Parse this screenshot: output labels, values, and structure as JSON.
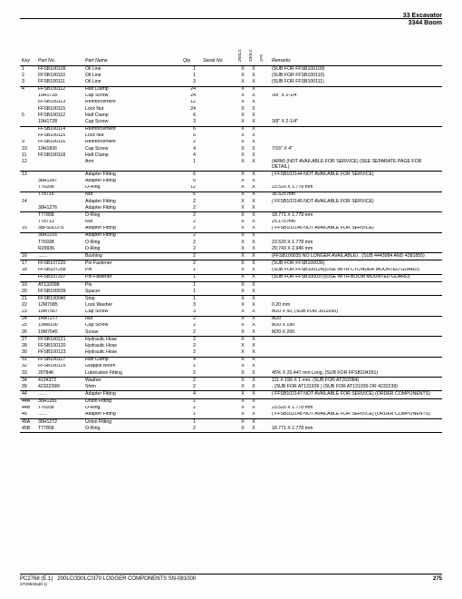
{
  "header": {
    "line1": "33  Excavator",
    "line2": "3344  Boom"
  },
  "columns": [
    "Key",
    "Part No.",
    "Part Name",
    "Qty.",
    "Serial No.",
    "200LC",
    "330LC",
    "370",
    "Remarks"
  ],
  "groups": [
    {
      "rows": [
        {
          "key": "1",
          "partno": "FFSB100109",
          "name": "Oil Line",
          "qty": "1",
          "v1": "X",
          "v2": "X",
          "remarks": "(SUB FOR FFSB100109)"
        },
        {
          "key": "2",
          "partno": "FFSB100110",
          "name": "Oil Line",
          "qty": "1",
          "v1": "X",
          "v2": "X",
          "remarks": "(SUB FOR FFSB100110)"
        },
        {
          "key": "3",
          "partno": "FFSB100111",
          "name": "Oil Line",
          "qty": "3",
          "v1": "X",
          "v2": "X",
          "remarks": "(SUB FOR FFSB100111)"
        }
      ]
    },
    {
      "rows": [
        {
          "key": "4",
          "partno": "FFSB100112",
          "name": "Half Clamp",
          "qty": "24",
          "v1": "X",
          "v2": "X"
        },
        {
          "key": "",
          "partno": "19H1728",
          "name": "Cap Screw",
          "qty": "24",
          "v1": "X",
          "v2": "X",
          "remarks": "3/8\" X 2-1/4\""
        },
        {
          "key": "",
          "partno": "FFSB100113",
          "name": "Reinforcement",
          "qty": "12",
          "v1": "X",
          "v2": "X"
        },
        {
          "key": "",
          "partno": "FFSB100115",
          "name": "Lock Nut",
          "qty": "24",
          "v1": "X",
          "v2": "X"
        },
        {
          "key": "5",
          "partno": "FFSB100112",
          "name": "Half Clamp",
          "qty": "6",
          "v1": "X",
          "v2": "X"
        },
        {
          "key": "",
          "partno": "19H1728",
          "name": "Cap Screw",
          "qty": "3",
          "v1": "X",
          "v2": "X",
          "remarks": "3/8\" X 2-1/4\""
        }
      ]
    },
    {
      "rows": [
        {
          "key": "",
          "partno": "FFSB100114",
          "name": "Reinforcement",
          "qty": "6",
          "v1": "X",
          "v2": "X"
        },
        {
          "key": "",
          "partno": "FFSB100115",
          "name": "Lock Nut",
          "qty": "6",
          "v1": "X",
          "v2": "X"
        },
        {
          "key": "9",
          "partno": "FFSB100116",
          "name": "Reinforcement",
          "qty": "2",
          "v1": "X",
          "v2": "X"
        },
        {
          "key": "10",
          "partno": "19H1826",
          "name": "Cap Screw",
          "qty": "4",
          "v1": "X",
          "v2": "X",
          "remarks": "7/16\" X 4\""
        },
        {
          "key": "11",
          "partno": "FFSB100118",
          "name": "Half Clamp",
          "qty": "4",
          "v1": "X",
          "v2": "X"
        },
        {
          "key": "12",
          "partno": "",
          "name": "Arm",
          "qty": "1",
          "v1": "X",
          "v2": "X",
          "remarks": "(ARM) (NOT AVAILABLE FOR SERVICE) (SEE SEPARATE PAGE FOR DETAIL)"
        }
      ]
    },
    {
      "rows": [
        {
          "key": "13",
          "partno": "",
          "name": "Adapter Fitting",
          "qty": "6",
          "v1": "X",
          "v2": "X",
          "remarks": "( FFSB102144 NOT AVAILABLE FOR SERVICE)"
        },
        {
          "key": "",
          "partno": "38H1287",
          "name": "Adapter Fitting",
          "qty": "6",
          "v1": "X",
          "v2": "X"
        },
        {
          "key": "",
          "partno": "T76938",
          "name": "O-Ring",
          "qty": "12",
          "v1": "X",
          "v2": "X",
          "remarks": "23.520 X 1.778 mm"
        }
      ]
    },
    {
      "rows": [
        {
          "key": "",
          "partno": "T78715",
          "name": "Nut",
          "qty": "6",
          "v1": "X",
          "v2": "X",
          "remarks": "36.525 mm"
        },
        {
          "key": "14",
          "partno": "",
          "name": "Adapter Fitting",
          "qty": "2",
          "v1": "X",
          "v2": "X",
          "remarks": "( FFSB102145 NOT AVAILABLE FOR SERVICE)"
        },
        {
          "key": "",
          "partno": "38H1276",
          "name": "Adapter Fitting",
          "qty": "2",
          "v1": "X",
          "v2": "X"
        }
      ]
    },
    {
      "rows": [
        {
          "key": "",
          "partno": "T77858",
          "name": "O-Ring",
          "qty": "2",
          "v1": "X",
          "v2": "X",
          "remarks": "18.771 X 1.778 mm"
        },
        {
          "key": "",
          "partno": "T78713",
          "name": "Nut",
          "qty": "2",
          "v1": "X",
          "v2": "X",
          "remarks": "25.175 mm"
        },
        {
          "key": "15",
          "partno": "38FSDLO-S",
          "name": "Adapter Fitting",
          "qty": "2",
          "v1": "X",
          "v2": "X",
          "remarks": "( FFSB102146 NOT AVAILABLE FOR SERVICE)"
        }
      ]
    },
    {
      "rows": [
        {
          "key": "",
          "partno": "38H1216",
          "name": "Adapter Fitting",
          "qty": "2",
          "v1": "X",
          "v2": "X"
        },
        {
          "key": "",
          "partno": "T76938",
          "name": "O-Ring",
          "qty": "2",
          "v1": "X",
          "v2": "X",
          "remarks": "23.520 X 1.778 mm"
        },
        {
          "key": "",
          "partno": "R29936",
          "name": "O-Ring",
          "qty": "2",
          "v1": "X",
          "v2": "X",
          "remarks": "29.743 X 2.946 mm"
        }
      ]
    },
    {
      "rows": [
        {
          "key": "16",
          "partno": ".......",
          "name": "Bushing",
          "qty": "2",
          "v1": "X",
          "v2": "X",
          "remarks": "(FFSB100035 NO LONGER AVAILABLE) , (SUB 4443984 AND 4381855)"
        }
      ]
    },
    {
      "rows": [
        {
          "key": "17",
          "partno": "FFSB107220",
          "name": "Pin Fastener",
          "qty": "2",
          "v1": "X",
          "v2": "X",
          "remarks": "(SUB FOR FFSB100036)"
        },
        {
          "key": "18",
          "partno": "FFSB107258",
          "name": "Pin",
          "qty": "1",
          "v1": "X",
          "v2": "X",
          "remarks": "(SUB FOR FFSB100124)(USE WITH CYLINDER MOUNTED GUARD)"
        }
      ]
    },
    {
      "rows": [
        {
          "key": "",
          "partno": "FFSB107207",
          "name": "Pin Fastener",
          "qty": "1",
          "v1": "X",
          "v2": "X",
          "remarks": "(SUB FOR FFSB100037)(USE WITH BOOM MOUNTED GUARD)"
        }
      ]
    },
    {
      "rows": [
        {
          "key": "19",
          "partno": "AT132098",
          "name": "Pin",
          "qty": "1",
          "v1": "X",
          "v2": "X"
        },
        {
          "key": "20",
          "partno": "FFSB100039",
          "name": "Spacer",
          "qty": "1",
          "v1": "X",
          "v2": "X"
        }
      ]
    },
    {
      "rows": [
        {
          "key": "21",
          "partno": "FFSB100040",
          "name": "Stop",
          "qty": "1",
          "v1": "X",
          "v2": "X"
        },
        {
          "key": "22",
          "partno": "12M7085",
          "name": "Lock Washer",
          "qty": "3",
          "v1": "X",
          "v2": "X",
          "remarks": "0.20 mm"
        },
        {
          "key": "23",
          "partno": "19M7567",
          "name": "Cap Screw",
          "qty": "3",
          "v1": "X",
          "v2": "X",
          "remarks": "M20 X 50, (SUB FOR J912050)"
        }
      ]
    },
    {
      "rows": [
        {
          "key": "24",
          "partno": "14M7277",
          "name": "Nut",
          "qty": "2",
          "v1": "X",
          "v2": "X",
          "remarks": "M20"
        },
        {
          "key": "25",
          "partno": "19M8100",
          "name": "Cap Screw",
          "qty": "2",
          "v1": "X",
          "v2": "X",
          "remarks": "M20 X 180"
        },
        {
          "key": "26",
          "partno": "19M7645",
          "name": "Screw",
          "qty": "2",
          "v1": "X",
          "v2": "X",
          "remarks": "M20 X 200"
        }
      ]
    },
    {
      "rows": [
        {
          "key": "27",
          "partno": "FFSB100121",
          "name": "Hydraulic Hose",
          "qty": "2",
          "v1": "X",
          "v2": "X"
        },
        {
          "key": "28",
          "partno": "FFSB100120",
          "name": "Hydraulic Hose",
          "qty": "2",
          "v1": "X",
          "v2": "X"
        },
        {
          "key": "30",
          "partno": "FFSB100123",
          "name": "Hydraulic Hose",
          "qty": "2",
          "v1": "X",
          "v2": "X"
        }
      ]
    },
    {
      "rows": [
        {
          "key": "31",
          "partno": "FFSB100117",
          "name": "Half Clamp",
          "qty": "4",
          "v1": "X",
          "v2": "X"
        },
        {
          "key": "32",
          "partno": "FFSB100125",
          "name": "Grapple Boom",
          "qty": "1",
          "v1": "X",
          "v2": "X"
        },
        {
          "key": "33",
          "partno": "J0784K",
          "name": "Lubrication Fitting",
          "qty": "2",
          "v1": "X",
          "v2": "X",
          "remarks": "45% X 20.447 mm Long, (SUB FOR FFSB104351)"
        }
      ]
    },
    {
      "rows": [
        {
          "key": "34",
          "partno": "4134372",
          "name": "Washer",
          "qty": "2",
          "v1": "X",
          "v2": "X",
          "remarks": "111 X 190 X 1 mm, (SUB FOR AT202084)"
        },
        {
          "key": "39",
          "partno": "4232239R",
          "name": "Shim",
          "qty": "2",
          "v1": "X",
          "v2": "X",
          "remarks": ", (SUB FOR AT131939 ) (SUB FOR AT131939 OR 4232239)"
        }
      ]
    },
    {
      "rows": [
        {
          "key": "44",
          "partno": ".......",
          "name": "Adapter Fitting",
          "qty": "4",
          "v1": "X",
          "v2": "X",
          "remarks": "( FFSB102147 NOT AVAILABLE FOR SERVICE) (ORDER COMPONENTS)"
        }
      ]
    },
    {
      "rows": [
        {
          "key": "44A",
          "partno": "38H1281",
          "name": "Union Fitting",
          "qty": "1",
          "v1": "X",
          "v2": "X"
        },
        {
          "key": "44B",
          "partno": "T76938",
          "name": "O-Ring",
          "qty": "2",
          "v1": "X",
          "v2": "X",
          "remarks": "23.520 X 1.778 mm"
        },
        {
          "key": "45",
          "partno": ".......",
          "name": "Adapter Fitting",
          "qty": "1",
          "v1": "X",
          "v2": "X",
          "remarks": "( FFSB102148 NOT AVAILABLE FOR SERVICE) (ORDER COMPONENTS)"
        }
      ]
    },
    {
      "rows": [
        {
          "key": "45A",
          "partno": "38H1272",
          "name": "Union Fitting",
          "qty": "1",
          "v1": "X",
          "v2": "X"
        },
        {
          "key": "45B",
          "partno": "T77858",
          "name": "O-Ring",
          "qty": "2",
          "v1": "X",
          "v2": "X",
          "remarks": "18.771 X 1.778 mm"
        }
      ]
    }
  ],
  "footer": {
    "left1": "PC2768   (E.1)",
    "left2": "200LC/330LC/370 LOGGER COMPONENTS SN-081000",
    "sub": "ST29532a(8.1)",
    "page": "275"
  }
}
